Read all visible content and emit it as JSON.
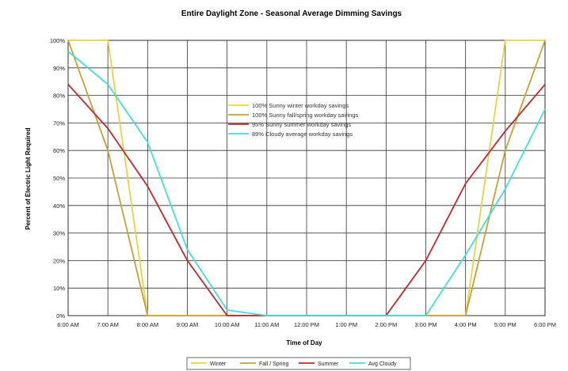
{
  "chart_data": {
    "type": "line",
    "title": "Entire Daylight Zone - Seasonal Average Dimming Savings",
    "xlabel": "Time of Day",
    "ylabel": "Percent of Electric Light Required",
    "categories": [
      "6:00 AM",
      "7:00 AM",
      "8:00 AM",
      "9:00 AM",
      "10:00 AM",
      "11:00 AM",
      "12:00 PM",
      "1:00 PM",
      "2:00 PM",
      "3:00 PM",
      "4:00 PM",
      "5:00 PM",
      "6:00 PM"
    ],
    "x_range": [
      6,
      18
    ],
    "ylim": [
      0,
      100
    ],
    "yticks": [
      "0%",
      "10%",
      "20%",
      "30%",
      "40%",
      "50%",
      "60%",
      "70%",
      "80%",
      "90%",
      "100%"
    ],
    "grid": true,
    "legend_position": "center",
    "series": [
      {
        "name": "Winter",
        "color": "#e8d440",
        "x": [
          6,
          7,
          8,
          16,
          17,
          18
        ],
        "values": [
          100,
          100,
          0,
          0,
          100,
          100
        ]
      },
      {
        "name": "Fall / Spring",
        "color": "#c8a032",
        "x": [
          6,
          7,
          8,
          16,
          17,
          18
        ],
        "values": [
          100,
          60,
          0,
          0,
          60,
          100
        ]
      },
      {
        "name": "Summer",
        "color": "#c0282c",
        "x": [
          6,
          7,
          8,
          9,
          10,
          14,
          15,
          16,
          17,
          18
        ],
        "values": [
          84,
          68,
          47,
          20,
          0,
          0,
          20,
          48,
          67,
          84
        ]
      },
      {
        "name": "Avg Cloudy",
        "color": "#40e0d8",
        "x": [
          6,
          7,
          8,
          9,
          10,
          11,
          15,
          16,
          17,
          18
        ],
        "values": [
          96,
          84,
          63,
          24,
          2,
          0,
          0,
          22,
          46,
          75
        ]
      }
    ],
    "annotation_legend": [
      {
        "label": "100% Sunny winter workday savings",
        "color": "#e8d440"
      },
      {
        "label": "100% Sunny fall/spring workday savings",
        "color": "#c8a032"
      },
      {
        "label": "95% Sunny summer workday savings",
        "color": "#c0282c"
      },
      {
        "label": "89% Cloudy average workday savings",
        "color": "#40e0d8"
      }
    ],
    "bottom_legend": [
      "Winter",
      "Fall / Spring",
      "Summer",
      "Avg Cloudy"
    ]
  }
}
